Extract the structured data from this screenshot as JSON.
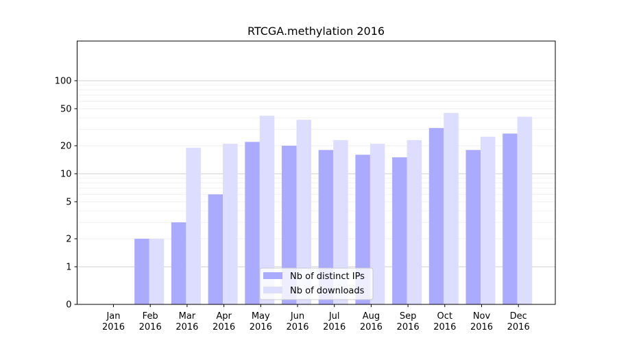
{
  "chart_data": {
    "type": "bar",
    "title": "RTCGA.methylation 2016",
    "xlabel": "",
    "ylabel": "",
    "yscale": "symlog",
    "ytick_labels": [
      "0",
      "1",
      "2",
      "5",
      "10",
      "20",
      "50",
      "100"
    ],
    "categories": [
      "Jan\n2016",
      "Feb\n2016",
      "Mar\n2016",
      "Apr\n2016",
      "May\n2016",
      "Jun\n2016",
      "Jul\n2016",
      "Aug\n2016",
      "Sep\n2016",
      "Oct\n2016",
      "Nov\n2016",
      "Dec\n2016"
    ],
    "series": [
      {
        "name": "Nb of distinct IPs",
        "color": "#aaaaff",
        "values": [
          0,
          2,
          3,
          6,
          22,
          20,
          18,
          16,
          15,
          31,
          18,
          27
        ]
      },
      {
        "name": "Nb of downloads",
        "color": "#ddddff",
        "values": [
          0,
          2,
          19,
          21,
          42,
          38,
          23,
          21,
          23,
          45,
          25,
          41
        ]
      }
    ],
    "grid": true,
    "legend_position": "bottom-center"
  }
}
